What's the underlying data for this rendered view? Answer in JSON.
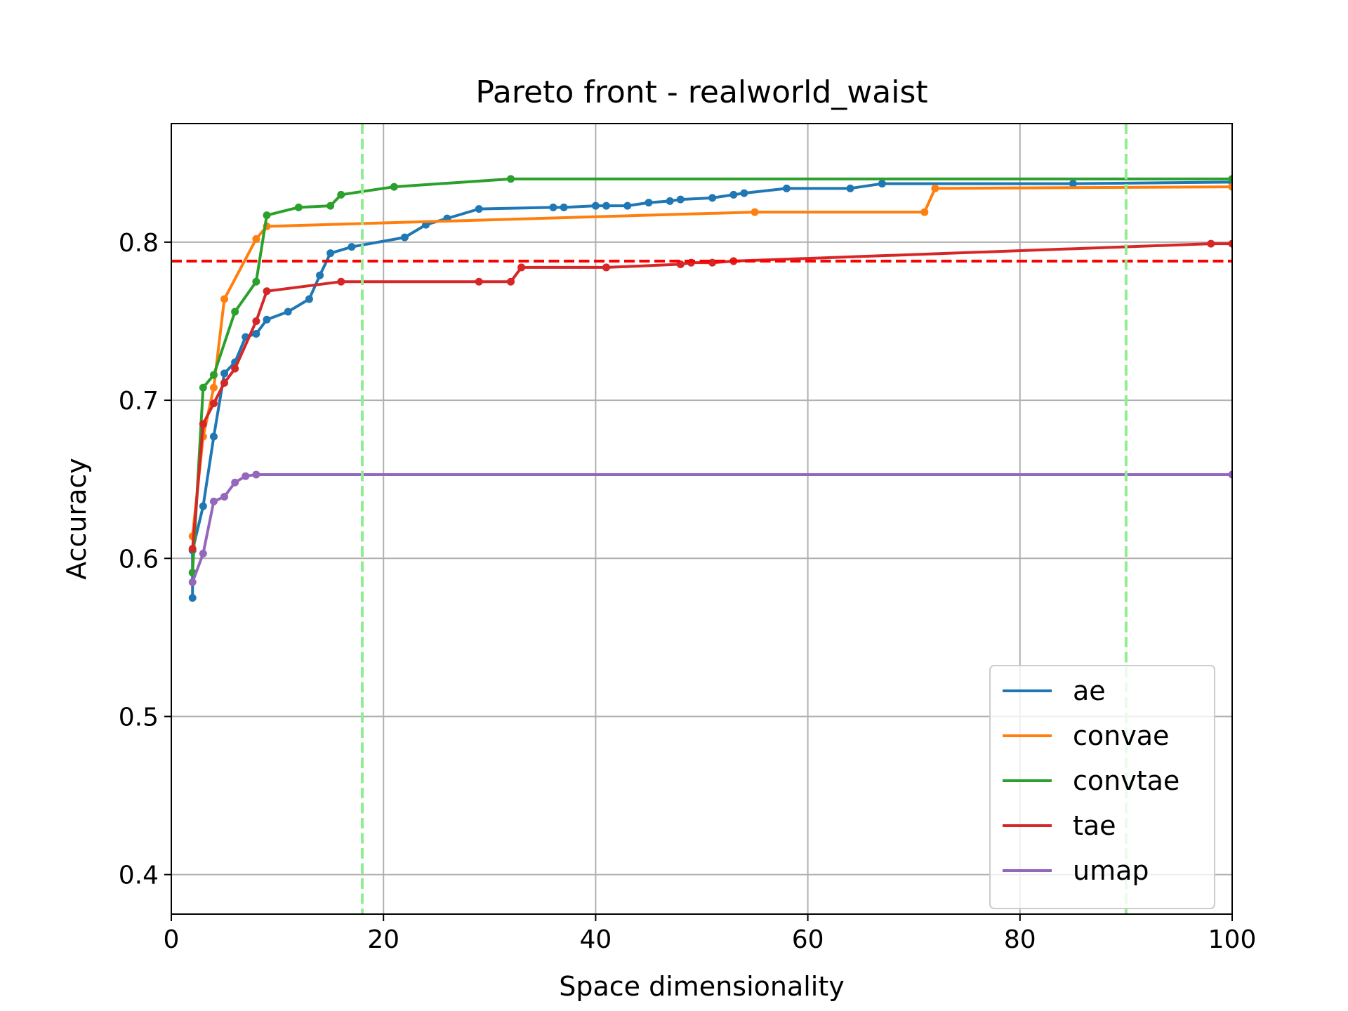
{
  "chart_data": {
    "type": "line",
    "title": "Pareto front - realworld_waist",
    "xlabel": "Space dimensionality",
    "ylabel": "Accuracy",
    "xlim": [
      0,
      100
    ],
    "ylim": [
      0.375,
      0.875
    ],
    "xticks": [
      0,
      20,
      40,
      60,
      80,
      100
    ],
    "xtick_labels": [
      "0",
      "20",
      "40",
      "60",
      "80",
      "100"
    ],
    "yticks": [
      0.4,
      0.5,
      0.6,
      0.7,
      0.8
    ],
    "ytick_labels": [
      "0.4",
      "0.5",
      "0.6",
      "0.7",
      "0.8"
    ],
    "grid": true,
    "legend_position": "bottom-right",
    "series": [
      {
        "name": "ae",
        "color": "#1f77b4",
        "points": [
          [
            2,
            0.575
          ],
          [
            2,
            0.605
          ],
          [
            3,
            0.633
          ],
          [
            4,
            0.677
          ],
          [
            5,
            0.717
          ],
          [
            6,
            0.724
          ],
          [
            7,
            0.74
          ],
          [
            8,
            0.742
          ],
          [
            9,
            0.751
          ],
          [
            11,
            0.756
          ],
          [
            13,
            0.764
          ],
          [
            14,
            0.779
          ],
          [
            15,
            0.793
          ],
          [
            17,
            0.797
          ],
          [
            22,
            0.803
          ],
          [
            24,
            0.811
          ],
          [
            26,
            0.815
          ],
          [
            29,
            0.821
          ],
          [
            36,
            0.822
          ],
          [
            37,
            0.822
          ],
          [
            40,
            0.823
          ],
          [
            41,
            0.823
          ],
          [
            43,
            0.823
          ],
          [
            45,
            0.825
          ],
          [
            47,
            0.826
          ],
          [
            48,
            0.827
          ],
          [
            51,
            0.828
          ],
          [
            53,
            0.83
          ],
          [
            54,
            0.831
          ],
          [
            58,
            0.834
          ],
          [
            64,
            0.834
          ],
          [
            67,
            0.837
          ],
          [
            85,
            0.837
          ],
          [
            100,
            0.838
          ]
        ]
      },
      {
        "name": "convae",
        "color": "#ff7f0e",
        "points": [
          [
            2,
            0.614
          ],
          [
            3,
            0.677
          ],
          [
            4,
            0.708
          ],
          [
            5,
            0.764
          ],
          [
            8,
            0.802
          ],
          [
            9,
            0.81
          ],
          [
            55,
            0.819
          ],
          [
            71,
            0.819
          ],
          [
            72,
            0.834
          ],
          [
            100,
            0.835
          ]
        ]
      },
      {
        "name": "convtae",
        "color": "#2ca02c",
        "points": [
          [
            2,
            0.591
          ],
          [
            3,
            0.708
          ],
          [
            4,
            0.716
          ],
          [
            6,
            0.756
          ],
          [
            8,
            0.775
          ],
          [
            9,
            0.817
          ],
          [
            12,
            0.822
          ],
          [
            15,
            0.823
          ],
          [
            16,
            0.83
          ],
          [
            21,
            0.835
          ],
          [
            32,
            0.84
          ],
          [
            100,
            0.84
          ]
        ]
      },
      {
        "name": "tae",
        "color": "#d62728",
        "points": [
          [
            2,
            0.606
          ],
          [
            3,
            0.685
          ],
          [
            4,
            0.698
          ],
          [
            5,
            0.711
          ],
          [
            6,
            0.72
          ],
          [
            8,
            0.75
          ],
          [
            9,
            0.769
          ],
          [
            16,
            0.775
          ],
          [
            29,
            0.775
          ],
          [
            32,
            0.775
          ],
          [
            33,
            0.784
          ],
          [
            41,
            0.784
          ],
          [
            48,
            0.786
          ],
          [
            49,
            0.787
          ],
          [
            51,
            0.787
          ],
          [
            53,
            0.788
          ],
          [
            98,
            0.799
          ],
          [
            100,
            0.799
          ]
        ]
      },
      {
        "name": "umap",
        "color": "#9467bd",
        "points": [
          [
            2,
            0.585
          ],
          [
            3,
            0.603
          ],
          [
            4,
            0.636
          ],
          [
            5,
            0.639
          ],
          [
            6,
            0.648
          ],
          [
            7,
            0.652
          ],
          [
            8,
            0.653
          ],
          [
            100,
            0.653
          ]
        ]
      }
    ],
    "reference_lines": [
      {
        "orientation": "horizontal",
        "value": 0.788,
        "color": "#ff0000",
        "style": "dashed"
      },
      {
        "orientation": "vertical",
        "value": 18,
        "color": "#90ee90",
        "style": "dashed"
      },
      {
        "orientation": "vertical",
        "value": 90,
        "color": "#90ee90",
        "style": "dashed"
      }
    ]
  }
}
